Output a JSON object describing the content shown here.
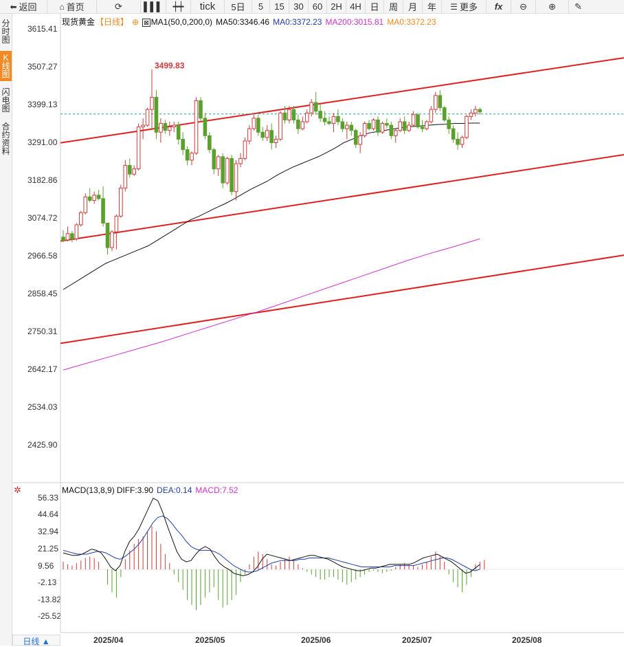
{
  "toolbar": {
    "back": "返回",
    "home": "首页",
    "tick": "tick",
    "d5": "5日",
    "m5": "5",
    "m15": "15",
    "m30": "30",
    "m60": "60",
    "h2": "2H",
    "h4": "4H",
    "day": "日",
    "week": "周",
    "month": "月",
    "year": "年",
    "more": "更多",
    "fx": "fx"
  },
  "sidebar": [
    "分时图",
    "K线图",
    "闪电图",
    "合约资料"
  ],
  "legend": {
    "name": "现货黄金",
    "period": "【日线】",
    "ma1": "MA1(50,0,200,0)",
    "ma50": "MA50:3346.46",
    "ma0a": "MA0:3372.23",
    "ma200": "MA200:3015.81",
    "ma0b": "MA0:3372.23"
  },
  "macd_legend": {
    "name": "MACD(13,8,9)",
    "diff": "DIFF:3.90",
    "dea": "DEA:0.14",
    "macd": "MACD:7.52"
  },
  "colors": {
    "up": "#d03a3a",
    "down": "#5aa02c",
    "ma50": "#111111",
    "ma200": "#cc33cc",
    "channel": "#e02020",
    "dea": "#1f3fa8",
    "accent": "#f08a24"
  },
  "period_button": "日线 ▲",
  "chart_data": {
    "type": "candlestick",
    "y_ticks": [
      "3615.41",
      "3507.27",
      "3399.13",
      "3291.00",
      "3182.86",
      "3074.72",
      "2966.58",
      "2858.45",
      "2750.31",
      "2642.17",
      "2534.03",
      "2425.90"
    ],
    "ylim": [
      2425.9,
      3615.41
    ],
    "x_labels": [
      "2025/04",
      "2025/05",
      "2025/06",
      "2025/07",
      "2025/08"
    ],
    "high_annotation": "3499.83",
    "last_price": 3372.0,
    "candles": [
      [
        3020,
        3040,
        3005,
        3010
      ],
      [
        3012,
        3050,
        3008,
        3030
      ],
      [
        3030,
        3038,
        3005,
        3015
      ],
      [
        3015,
        3060,
        3010,
        3055
      ],
      [
        3055,
        3095,
        3050,
        3090
      ],
      [
        3090,
        3145,
        3085,
        3135
      ],
      [
        3135,
        3160,
        3120,
        3125
      ],
      [
        3125,
        3150,
        3115,
        3140
      ],
      [
        3140,
        3155,
        3125,
        3130
      ],
      [
        3130,
        3165,
        3050,
        3060
      ],
      [
        3060,
        3060,
        2970,
        2990
      ],
      [
        2990,
        3040,
        2980,
        3035
      ],
      [
        3035,
        3085,
        2985,
        3080
      ],
      [
        3080,
        3170,
        3075,
        3160
      ],
      [
        3160,
        3240,
        3150,
        3225
      ],
      [
        3225,
        3245,
        3190,
        3200
      ],
      [
        3200,
        3225,
        3195,
        3215
      ],
      [
        3215,
        3345,
        3210,
        3335
      ],
      [
        3335,
        3360,
        3300,
        3340
      ],
      [
        3340,
        3390,
        3335,
        3385
      ],
      [
        3385,
        3500,
        3330,
        3420
      ],
      [
        3420,
        3440,
        3300,
        3320
      ],
      [
        3320,
        3360,
        3290,
        3345
      ],
      [
        3345,
        3355,
        3315,
        3325
      ],
      [
        3325,
        3350,
        3310,
        3335
      ],
      [
        3335,
        3350,
        3320,
        3340
      ],
      [
        3340,
        3350,
        3285,
        3300
      ],
      [
        3300,
        3320,
        3255,
        3270
      ],
      [
        3270,
        3280,
        3225,
        3240
      ],
      [
        3240,
        3265,
        3225,
        3260
      ],
      [
        3260,
        3420,
        3255,
        3410
      ],
      [
        3410,
        3420,
        3350,
        3360
      ],
      [
        3360,
        3375,
        3300,
        3310
      ],
      [
        3310,
        3320,
        3260,
        3270
      ],
      [
        3270,
        3275,
        3200,
        3215
      ],
      [
        3215,
        3255,
        3195,
        3250
      ],
      [
        3250,
        3260,
        3160,
        3175
      ],
      [
        3175,
        3250,
        3170,
        3245
      ],
      [
        3245,
        3255,
        3140,
        3150
      ],
      [
        3150,
        3240,
        3125,
        3230
      ],
      [
        3230,
        3260,
        3220,
        3245
      ],
      [
        3245,
        3305,
        3240,
        3295
      ],
      [
        3295,
        3340,
        3285,
        3330
      ],
      [
        3330,
        3370,
        3325,
        3360
      ],
      [
        3360,
        3370,
        3310,
        3320
      ],
      [
        3320,
        3335,
        3295,
        3305
      ],
      [
        3305,
        3340,
        3295,
        3325
      ],
      [
        3325,
        3345,
        3270,
        3290
      ],
      [
        3290,
        3310,
        3275,
        3300
      ],
      [
        3300,
        3380,
        3295,
        3375
      ],
      [
        3375,
        3395,
        3345,
        3355
      ],
      [
        3355,
        3395,
        3345,
        3385
      ],
      [
        3385,
        3395,
        3345,
        3355
      ],
      [
        3355,
        3370,
        3315,
        3330
      ],
      [
        3330,
        3365,
        3325,
        3350
      ],
      [
        3350,
        3385,
        3345,
        3375
      ],
      [
        3375,
        3415,
        3365,
        3405
      ],
      [
        3405,
        3435,
        3370,
        3380
      ],
      [
        3380,
        3400,
        3350,
        3360
      ],
      [
        3360,
        3380,
        3340,
        3350
      ],
      [
        3350,
        3365,
        3340,
        3345
      ],
      [
        3345,
        3375,
        3320,
        3365
      ],
      [
        3365,
        3385,
        3340,
        3350
      ],
      [
        3350,
        3360,
        3320,
        3330
      ],
      [
        3330,
        3350,
        3300,
        3340
      ],
      [
        3340,
        3350,
        3310,
        3325
      ],
      [
        3325,
        3330,
        3275,
        3285
      ],
      [
        3285,
        3320,
        3260,
        3310
      ],
      [
        3310,
        3350,
        3305,
        3345
      ],
      [
        3345,
        3355,
        3325,
        3330
      ],
      [
        3330,
        3360,
        3325,
        3355
      ],
      [
        3355,
        3365,
        3310,
        3320
      ],
      [
        3320,
        3350,
        3315,
        3345
      ],
      [
        3345,
        3360,
        3330,
        3340
      ],
      [
        3340,
        3350,
        3300,
        3310
      ],
      [
        3310,
        3330,
        3290,
        3325
      ],
      [
        3325,
        3360,
        3320,
        3350
      ],
      [
        3350,
        3365,
        3315,
        3325
      ],
      [
        3325,
        3350,
        3320,
        3340
      ],
      [
        3340,
        3380,
        3335,
        3370
      ],
      [
        3370,
        3375,
        3330,
        3335
      ],
      [
        3335,
        3355,
        3320,
        3330
      ],
      [
        3330,
        3355,
        3325,
        3350
      ],
      [
        3350,
        3395,
        3345,
        3385
      ],
      [
        3385,
        3435,
        3375,
        3425
      ],
      [
        3425,
        3440,
        3380,
        3390
      ],
      [
        3390,
        3395,
        3350,
        3355
      ],
      [
        3355,
        3365,
        3315,
        3330
      ],
      [
        3330,
        3340,
        3290,
        3300
      ],
      [
        3300,
        3320,
        3270,
        3285
      ],
      [
        3285,
        3310,
        3275,
        3305
      ],
      [
        3305,
        3370,
        3300,
        3365
      ],
      [
        3365,
        3385,
        3355,
        3375
      ],
      [
        3375,
        3395,
        3365,
        3385
      ],
      [
        3385,
        3390,
        3370,
        3378
      ]
    ],
    "ma50": [
      2870,
      2885,
      2900,
      2915,
      2930,
      2945,
      2955,
      2965,
      2975,
      2985,
      2995,
      3010,
      3025,
      3040,
      3055,
      3070,
      3080,
      3092,
      3104,
      3115,
      3128,
      3142,
      3156,
      3168,
      3180,
      3195,
      3208,
      3220,
      3230,
      3240,
      3250,
      3262,
      3275,
      3290,
      3300,
      3310,
      3318,
      3322,
      3326,
      3330,
      3334,
      3336,
      3338,
      3340,
      3342,
      3343,
      3345,
      3345,
      3346,
      3346
    ],
    "ma200": [
      2640,
      2660,
      2680,
      2700,
      2720,
      2742,
      2764,
      2786,
      2808,
      2832,
      2856,
      2880,
      2904,
      2928,
      2952,
      2974,
      2994,
      3015
    ],
    "channel_lines": [
      {
        "x": [
          0,
          1
        ],
        "y": [
          3289.5,
          3532.7
        ]
      },
      {
        "x": [
          0,
          1
        ],
        "y": [
          3008.5,
          3255.6
        ]
      },
      {
        "x": [
          0,
          1
        ],
        "y": [
          2716.1,
          2968.3
        ]
      }
    ],
    "macd_ticks": [
      "56.33",
      "44.64",
      "32.94",
      "21.25",
      "9.56",
      "-2.13",
      "-13.82",
      "-25.52"
    ],
    "macd_ylim": [
      -37.21,
      56.33
    ],
    "macd_hist": [
      6,
      4,
      3,
      5,
      7,
      9,
      10,
      9,
      6,
      0,
      -12,
      -18,
      -22,
      -6,
      8,
      15,
      20,
      24,
      26,
      30,
      34,
      30,
      20,
      12,
      5,
      -4,
      -10,
      -16,
      -24,
      -28,
      -32,
      -28,
      -22,
      -18,
      -14,
      -24,
      -30,
      -28,
      -24,
      -20,
      -10,
      -4,
      4,
      10,
      14,
      12,
      8,
      4,
      3,
      6,
      8,
      10,
      8,
      4,
      1,
      -2,
      -4,
      -6,
      -8,
      -8,
      -6,
      -6,
      -8,
      -10,
      -12,
      -10,
      -8,
      -6,
      -4,
      -2,
      -1,
      -2,
      -3,
      -2,
      -1,
      2,
      4,
      5,
      4,
      3,
      2,
      4,
      6,
      10,
      14,
      10,
      6,
      -4,
      -10,
      -14,
      -18,
      -12,
      -6,
      4,
      6,
      7.52
    ],
    "macd_diff": [
      13,
      12,
      11,
      11,
      12,
      14,
      16,
      15,
      13,
      8,
      2,
      -1,
      3,
      14,
      22,
      26,
      32,
      40,
      48,
      56,
      54,
      45,
      34,
      24,
      14,
      8,
      6,
      7,
      12,
      16,
      18,
      16,
      10,
      5,
      2,
      0,
      -3,
      -4,
      -5,
      -4,
      -2,
      2,
      8,
      12,
      11,
      10,
      9,
      8,
      7,
      8,
      9,
      10,
      11,
      11,
      10,
      9,
      8,
      6,
      4,
      2,
      1,
      0,
      -1,
      -1,
      0,
      1,
      1,
      2,
      3,
      4,
      4,
      4,
      4,
      4,
      5,
      7,
      9,
      10,
      11,
      12,
      10,
      8,
      6,
      3,
      0,
      -3,
      -2,
      1,
      3.9
    ],
    "macd_dea": [
      15,
      14,
      13,
      12,
      12,
      12,
      13,
      14,
      14,
      13,
      11,
      9,
      8,
      10,
      13,
      16,
      20,
      25,
      31,
      37,
      41,
      42,
      40,
      36,
      31,
      27,
      22,
      18,
      16,
      15,
      15,
      15,
      14,
      12,
      9,
      6,
      3,
      1,
      -1,
      -2,
      -2,
      -1,
      1,
      3,
      5,
      6,
      7,
      7,
      7,
      7,
      8,
      8,
      9,
      9,
      9,
      9,
      9,
      8,
      7,
      6,
      5,
      4,
      3,
      2,
      2,
      2,
      2,
      2,
      2,
      2,
      3,
      3,
      3,
      3,
      3,
      4,
      5,
      6,
      7,
      8,
      9,
      9,
      8,
      6,
      4,
      2,
      0,
      -1,
      0.14
    ]
  }
}
